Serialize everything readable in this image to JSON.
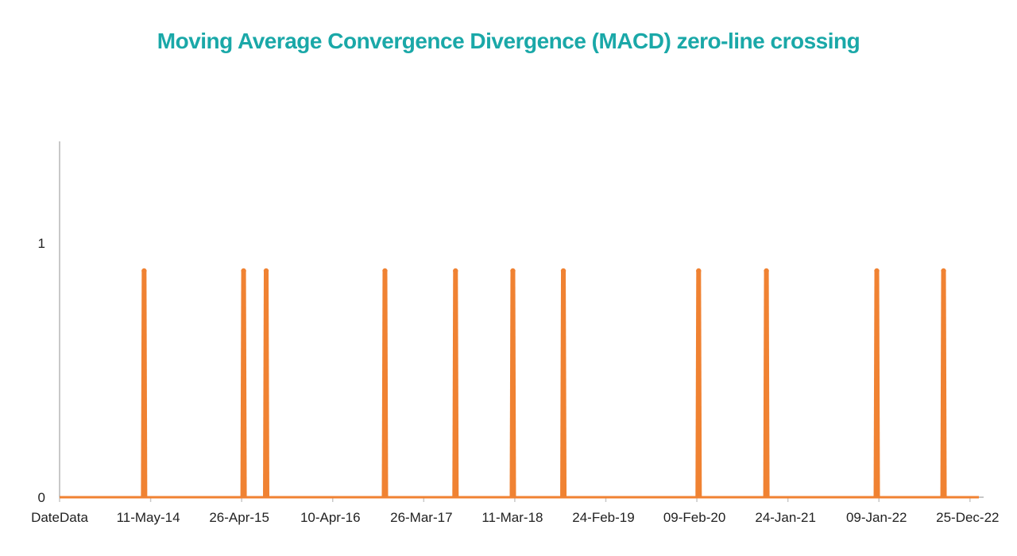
{
  "chart_data": {
    "type": "line",
    "title": "Moving Average Convergence Divergence (MACD) zero-line crossing",
    "xlabel": "",
    "ylabel": "",
    "ylim": [
      0,
      1.4
    ],
    "y_ticks": [
      "0",
      "1"
    ],
    "x_first_label": "DateData",
    "x_tick_labels": [
      "11-May-14",
      "26-Apr-15",
      "10-Apr-16",
      "26-Mar-17",
      "11-Mar-18",
      "24-Feb-19",
      "09-Feb-20",
      "24-Jan-21",
      "09-Jan-22",
      "25-Dec-22"
    ],
    "x_range": [
      "2013-05-26",
      "2023-05-15"
    ],
    "grid": false,
    "legend": "none",
    "series": [
      {
        "values_note_free": true,
        "crossings": [
          "2014-04-24",
          "2015-05-21",
          "2015-08-18",
          "2016-11-28",
          "2017-09-02",
          "2018-04-16",
          "2018-11-01",
          "2020-04-17",
          "2021-01-09",
          "2022-03-20",
          "2022-12-08"
        ],
        "peak_value": 0.9,
        "base_value": 0
      }
    ]
  },
  "colors": {
    "title": "#1aa8a8",
    "series": "#f08232",
    "axis": "#c8c8c8",
    "text": "#222222"
  }
}
